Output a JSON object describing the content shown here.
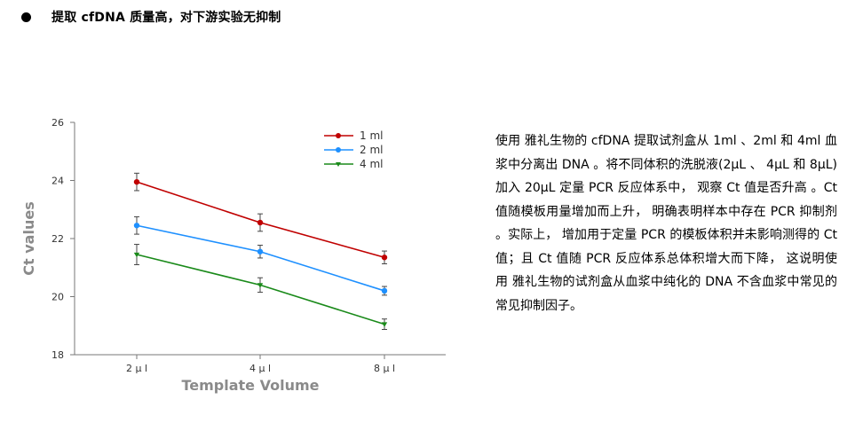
{
  "heading": {
    "bullet_text": "提取 cfDNA 质量高，对下游实验无抑制"
  },
  "paragraph": {
    "text": "使用 雅礼生物的 cfDNA 提取试剂盒从 1ml 、2ml 和 4ml 血浆中分离出 DNA 。将不同体积的洗脱液(2μL 、 4μL 和 8μL) 加入 20μL 定量 PCR 反应体系中， 观察 Ct 值是否升高 。Ct 值随模板用量增加而上升， 明确表明样本中存在 PCR 抑制剂 。实际上， 增加用于定量 PCR 的模板体积并未影响测得的 Ct 值；且 Ct 值随 PCR 反应体系总体积增大而下降， 这说明使用 雅礼生物的试剂盒从血浆中纯化的 DNA 不含血浆中常见的常见抑制因子。"
  },
  "chart_data": {
    "type": "line",
    "categories": [
      "2 μ l",
      "4 μ l",
      "8 μ l"
    ],
    "xlabel": "Template Volume",
    "ylabel": "Ct values",
    "ylim": [
      18,
      26
    ],
    "yticks": [
      18,
      20,
      22,
      24,
      26
    ],
    "legend_position": "top-right",
    "series": [
      {
        "name": "1 ml",
        "color": "#c00000",
        "marker": "circle",
        "values": [
          23.95,
          22.55,
          21.35
        ],
        "errors": [
          0.3,
          0.3,
          0.22
        ]
      },
      {
        "name": "2 ml",
        "color": "#1e90ff",
        "marker": "circle",
        "values": [
          22.45,
          21.55,
          20.2
        ],
        "errors": [
          0.3,
          0.22,
          0.15
        ]
      },
      {
        "name": "4 ml",
        "color": "#1a8a1a",
        "marker": "triangle",
        "values": [
          21.45,
          20.4,
          19.05
        ],
        "errors": [
          0.35,
          0.25,
          0.18
        ]
      }
    ]
  }
}
